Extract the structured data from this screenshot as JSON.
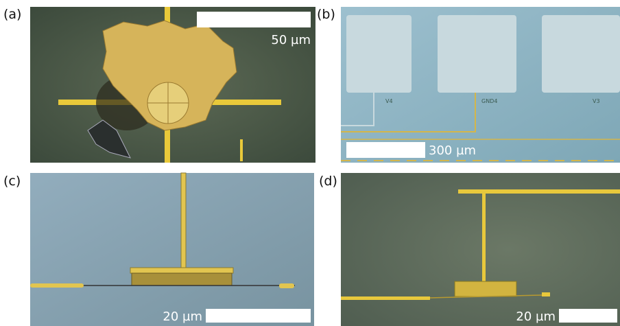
{
  "panels": [
    {
      "label": "(a)",
      "scale_bar": "50 µm"
    },
    {
      "label": "(b)",
      "scale_bar": "300 µm",
      "pad_labels": [
        "V4",
        "GND4",
        "V3"
      ]
    },
    {
      "label": "(c)",
      "scale_bar": "20 µm"
    },
    {
      "label": "(d)",
      "scale_bar": "20 µm"
    }
  ]
}
